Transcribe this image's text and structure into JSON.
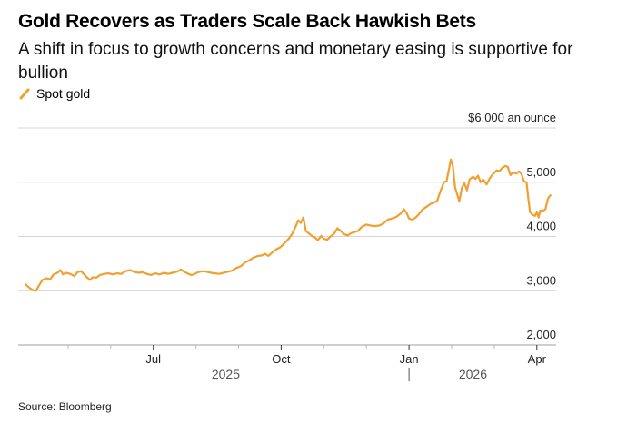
{
  "header": {
    "title": "Gold Recovers as Traders Scale Back Hawkish Bets",
    "subtitle": "A shift in focus to growth concerns and monetary easing is supportive for bullion"
  },
  "legend": {
    "items": [
      {
        "label": "Spot gold",
        "color": "#f0a030"
      }
    ]
  },
  "footer": {
    "source": "Source: Bloomberg"
  },
  "chart_data": {
    "type": "line",
    "title": "Gold Recovers as Traders Scale Back Hawkish Bets",
    "subtitle": "A shift in focus to growth concerns and monetary easing is supportive for bullion",
    "xlabel": "",
    "ylabel": "$ an ounce",
    "ylim": [
      2000,
      6000
    ],
    "yticks": [
      {
        "value": 6000,
        "label": "$6,000 an ounce"
      },
      {
        "value": 5000,
        "label": "5,000"
      },
      {
        "value": 4000,
        "label": "4,000"
      },
      {
        "value": 3000,
        "label": "3,000"
      },
      {
        "value": 2000,
        "label": "2,000"
      }
    ],
    "xlim_months": [
      0,
      12.1
    ],
    "xticks_major": [
      {
        "month": 3,
        "label": "Jul"
      },
      {
        "month": 6,
        "label": "Oct"
      },
      {
        "month": 9,
        "label": "Jan"
      },
      {
        "month": 12,
        "label": "Apr"
      }
    ],
    "xticks_minor": [
      1,
      2,
      4,
      5,
      7,
      8,
      10,
      11
    ],
    "year_labels": [
      {
        "month": 4.7,
        "label": "2025"
      },
      {
        "month": 10.5,
        "label": "2026"
      }
    ],
    "year_divider_month": 9,
    "x_origin": "2025-04-01",
    "grid": true,
    "legend_position": "top-left",
    "series": [
      {
        "name": "Spot gold",
        "color": "#f0a030",
        "points": [
          [
            0.0,
            3120
          ],
          [
            0.1,
            3050
          ],
          [
            0.18,
            3010
          ],
          [
            0.25,
            3000
          ],
          [
            0.32,
            3100
          ],
          [
            0.4,
            3200
          ],
          [
            0.5,
            3230
          ],
          [
            0.58,
            3210
          ],
          [
            0.66,
            3300
          ],
          [
            0.75,
            3330
          ],
          [
            0.82,
            3380
          ],
          [
            0.88,
            3300
          ],
          [
            0.95,
            3330
          ],
          [
            1.05,
            3310
          ],
          [
            1.15,
            3270
          ],
          [
            1.22,
            3340
          ],
          [
            1.3,
            3360
          ],
          [
            1.38,
            3300
          ],
          [
            1.45,
            3240
          ],
          [
            1.52,
            3200
          ],
          [
            1.58,
            3250
          ],
          [
            1.66,
            3240
          ],
          [
            1.75,
            3290
          ],
          [
            1.85,
            3310
          ],
          [
            1.95,
            3320
          ],
          [
            2.05,
            3300
          ],
          [
            2.15,
            3320
          ],
          [
            2.25,
            3310
          ],
          [
            2.35,
            3360
          ],
          [
            2.45,
            3380
          ],
          [
            2.55,
            3350
          ],
          [
            2.65,
            3330
          ],
          [
            2.75,
            3340
          ],
          [
            2.85,
            3310
          ],
          [
            2.95,
            3290
          ],
          [
            3.05,
            3320
          ],
          [
            3.15,
            3300
          ],
          [
            3.25,
            3330
          ],
          [
            3.35,
            3310
          ],
          [
            3.45,
            3330
          ],
          [
            3.55,
            3350
          ],
          [
            3.65,
            3390
          ],
          [
            3.72,
            3350
          ],
          [
            3.8,
            3320
          ],
          [
            3.88,
            3290
          ],
          [
            3.95,
            3300
          ],
          [
            4.05,
            3340
          ],
          [
            4.15,
            3360
          ],
          [
            4.25,
            3350
          ],
          [
            4.35,
            3330
          ],
          [
            4.45,
            3320
          ],
          [
            4.55,
            3310
          ],
          [
            4.65,
            3330
          ],
          [
            4.75,
            3350
          ],
          [
            4.85,
            3370
          ],
          [
            4.95,
            3420
          ],
          [
            5.05,
            3450
          ],
          [
            5.15,
            3520
          ],
          [
            5.25,
            3560
          ],
          [
            5.35,
            3610
          ],
          [
            5.45,
            3640
          ],
          [
            5.55,
            3650
          ],
          [
            5.62,
            3680
          ],
          [
            5.7,
            3640
          ],
          [
            5.78,
            3700
          ],
          [
            5.88,
            3760
          ],
          [
            5.98,
            3800
          ],
          [
            6.08,
            3880
          ],
          [
            6.18,
            3960
          ],
          [
            6.26,
            4050
          ],
          [
            6.34,
            4180
          ],
          [
            6.4,
            4300
          ],
          [
            6.46,
            4250
          ],
          [
            6.52,
            4350
          ],
          [
            6.58,
            4100
          ],
          [
            6.66,
            4050
          ],
          [
            6.74,
            4000
          ],
          [
            6.8,
            3980
          ],
          [
            6.86,
            3930
          ],
          [
            6.94,
            4010
          ],
          [
            7.0,
            3960
          ],
          [
            7.08,
            3940
          ],
          [
            7.16,
            4000
          ],
          [
            7.24,
            4050
          ],
          [
            7.32,
            4150
          ],
          [
            7.4,
            4100
          ],
          [
            7.48,
            4040
          ],
          [
            7.56,
            4020
          ],
          [
            7.64,
            4060
          ],
          [
            7.72,
            4080
          ],
          [
            7.8,
            4100
          ],
          [
            7.9,
            4180
          ],
          [
            8.0,
            4220
          ],
          [
            8.1,
            4200
          ],
          [
            8.2,
            4190
          ],
          [
            8.3,
            4200
          ],
          [
            8.4,
            4240
          ],
          [
            8.5,
            4310
          ],
          [
            8.6,
            4330
          ],
          [
            8.7,
            4360
          ],
          [
            8.8,
            4420
          ],
          [
            8.88,
            4500
          ],
          [
            8.94,
            4440
          ],
          [
            9.0,
            4330
          ],
          [
            9.08,
            4310
          ],
          [
            9.16,
            4350
          ],
          [
            9.24,
            4420
          ],
          [
            9.32,
            4500
          ],
          [
            9.4,
            4540
          ],
          [
            9.5,
            4600
          ],
          [
            9.58,
            4620
          ],
          [
            9.66,
            4660
          ],
          [
            9.74,
            4840
          ],
          [
            9.82,
            5000
          ],
          [
            9.88,
            5020
          ],
          [
            9.94,
            5250
          ],
          [
            9.98,
            5420
          ],
          [
            10.03,
            5300
          ],
          [
            10.08,
            4900
          ],
          [
            10.14,
            4750
          ],
          [
            10.18,
            4650
          ],
          [
            10.24,
            4900
          ],
          [
            10.3,
            4980
          ],
          [
            10.36,
            4850
          ],
          [
            10.42,
            5050
          ],
          [
            10.5,
            5100
          ],
          [
            10.56,
            5060
          ],
          [
            10.62,
            5120
          ],
          [
            10.68,
            5000
          ],
          [
            10.74,
            5050
          ],
          [
            10.82,
            4960
          ],
          [
            10.9,
            5080
          ],
          [
            10.98,
            5160
          ],
          [
            11.06,
            5220
          ],
          [
            11.12,
            5200
          ],
          [
            11.18,
            5260
          ],
          [
            11.26,
            5300
          ],
          [
            11.32,
            5280
          ],
          [
            11.38,
            5130
          ],
          [
            11.44,
            5180
          ],
          [
            11.52,
            5160
          ],
          [
            11.58,
            5200
          ],
          [
            11.64,
            5150
          ],
          [
            11.7,
            5020
          ],
          [
            11.76,
            4990
          ],
          [
            11.8,
            4700
          ],
          [
            11.84,
            4450
          ],
          [
            11.9,
            4400
          ],
          [
            11.96,
            4380
          ],
          [
            12.0,
            4460
          ],
          [
            12.04,
            4350
          ],
          [
            12.08,
            4480
          ],
          [
            12.14,
            4470
          ],
          [
            12.2,
            4500
          ],
          [
            12.26,
            4700
          ],
          [
            12.32,
            4760
          ]
        ]
      }
    ]
  }
}
